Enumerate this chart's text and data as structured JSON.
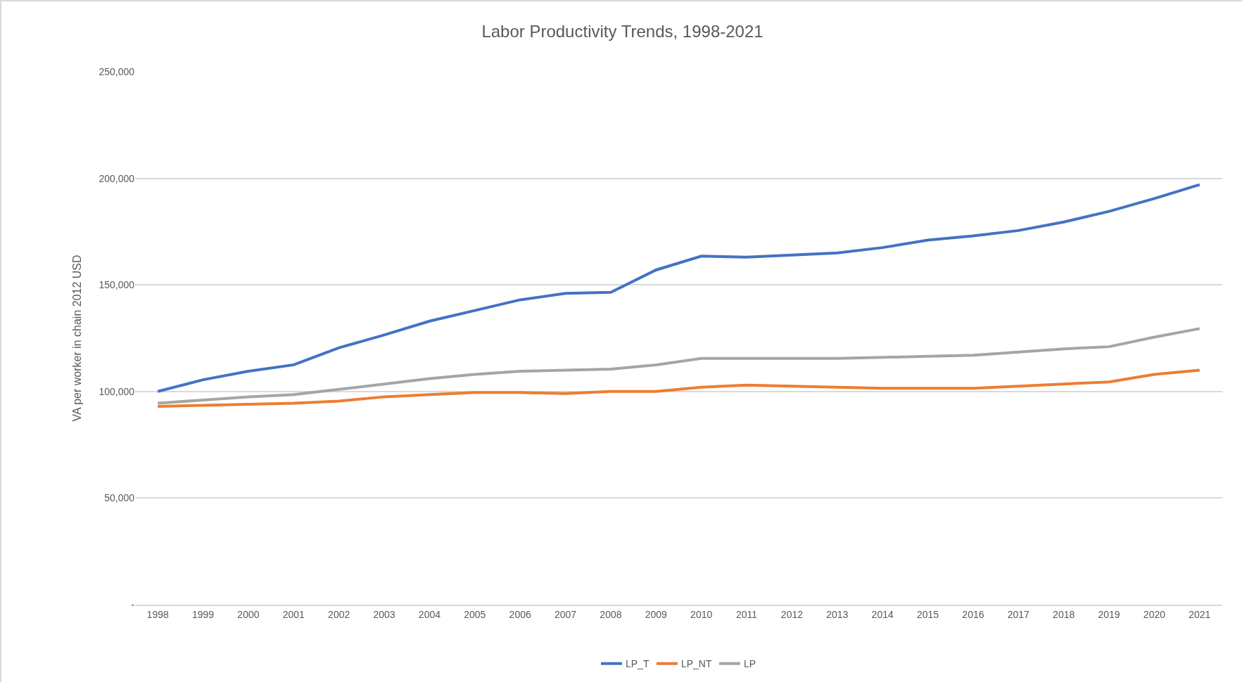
{
  "chart_data": {
    "type": "line",
    "title": "Labor Productivity Trends, 1998-2021",
    "ylabel": "VA per worker in chain 2012 USD",
    "categories": [
      "1998",
      "1999",
      "2000",
      "2001",
      "2002",
      "2003",
      "2004",
      "2005",
      "2006",
      "2007",
      "2008",
      "2009",
      "2010",
      "2011",
      "2012",
      "2013",
      "2014",
      "2015",
      "2016",
      "2017",
      "2018",
      "2019",
      "2020",
      "2021"
    ],
    "series": [
      {
        "name": "LP_T",
        "color": "#4472c4",
        "values": [
          100000,
          105500,
          109500,
          112500,
          120500,
          126500,
          133000,
          138000,
          143000,
          146000,
          146500,
          157000,
          163500,
          163000,
          164000,
          165000,
          167500,
          171000,
          173000,
          175500,
          179500,
          184500,
          190500,
          197000
        ]
      },
      {
        "name": "LP_NT",
        "color": "#ed7d31",
        "values": [
          93000,
          93500,
          94000,
          94500,
          95500,
          97500,
          98500,
          99500,
          99500,
          99000,
          100000,
          100000,
          102000,
          103000,
          102500,
          102000,
          101500,
          101500,
          101500,
          102500,
          103500,
          104500,
          108000,
          110000
        ]
      },
      {
        "name": "LP",
        "color": "#a5a5a5",
        "values": [
          94500,
          96000,
          97500,
          98500,
          101000,
          103500,
          106000,
          108000,
          109500,
          110000,
          110500,
          112500,
          115500,
          115500,
          115500,
          115500,
          116000,
          116500,
          117000,
          118500,
          120000,
          121000,
          125500,
          129500
        ]
      }
    ],
    "ylim": [
      0,
      250000
    ],
    "yticks": [
      {
        "value": 0,
        "label": "-"
      },
      {
        "value": 50000,
        "label": "50,000"
      },
      {
        "value": 100000,
        "label": "100,000"
      },
      {
        "value": 150000,
        "label": "150,000"
      },
      {
        "value": 200000,
        "label": "200,000"
      },
      {
        "value": 250000,
        "label": "250,000"
      }
    ],
    "grid": "y",
    "legend": "bottom",
    "marker": "none",
    "line_style": "solid"
  }
}
